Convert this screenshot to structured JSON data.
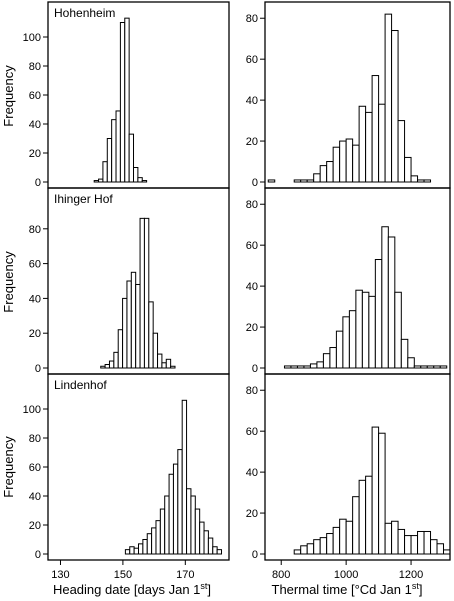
{
  "figure": {
    "ylabel": "Frequency",
    "xlabel_left_text": "Heading date [days Jan 1",
    "xlabel_left_sup": "st",
    "xlabel_left_close": "]",
    "xlabel_right_text": "Thermal time [°Cd Jan 1",
    "xlabel_right_sup": "st",
    "xlabel_right_close": "]",
    "bar_fill": "#ffffff",
    "bar_stroke": "#000000"
  },
  "chart_data": [
    {
      "type": "bar",
      "panel": "Hohenheim heading date",
      "title": "Hohenheim",
      "xlabel": "Heading date [days Jan 1st]",
      "ylabel": "Frequency",
      "xlim": [
        126,
        184
      ],
      "ylim": [
        0,
        120
      ],
      "xticks": [
        130,
        150,
        170
      ],
      "yticks": [
        0,
        20,
        40,
        60,
        80,
        100
      ],
      "show_x_tick_labels": false,
      "bin_width": 1.4,
      "bins": [
        {
          "x": 140.8,
          "y": 1
        },
        {
          "x": 142.2,
          "y": 2
        },
        {
          "x": 143.6,
          "y": 14
        },
        {
          "x": 145.0,
          "y": 30
        },
        {
          "x": 146.4,
          "y": 43
        },
        {
          "x": 147.8,
          "y": 49
        },
        {
          "x": 149.2,
          "y": 110
        },
        {
          "x": 150.6,
          "y": 113
        },
        {
          "x": 152.0,
          "y": 33
        },
        {
          "x": 153.4,
          "y": 10
        },
        {
          "x": 154.8,
          "y": 3
        },
        {
          "x": 156.2,
          "y": 1
        }
      ]
    },
    {
      "type": "bar",
      "panel": "Hohenheim thermal time",
      "title": "",
      "xlabel": "Thermal time [°Cd Jan 1st]",
      "ylabel": "",
      "xlim": [
        750,
        1320
      ],
      "ylim": [
        0,
        85
      ],
      "xticks": [
        800,
        1000,
        1200
      ],
      "yticks": [
        0,
        20,
        40,
        60,
        80
      ],
      "show_x_tick_labels": false,
      "bin_width": 20,
      "bins": [
        {
          "x": 760,
          "y": 1
        },
        {
          "x": 780,
          "y": 0
        },
        {
          "x": 800,
          "y": 0
        },
        {
          "x": 820,
          "y": 0
        },
        {
          "x": 840,
          "y": 1
        },
        {
          "x": 860,
          "y": 1
        },
        {
          "x": 880,
          "y": 1
        },
        {
          "x": 900,
          "y": 4
        },
        {
          "x": 920,
          "y": 8
        },
        {
          "x": 940,
          "y": 10
        },
        {
          "x": 960,
          "y": 17
        },
        {
          "x": 980,
          "y": 20
        },
        {
          "x": 1000,
          "y": 21
        },
        {
          "x": 1020,
          "y": 18
        },
        {
          "x": 1040,
          "y": 37
        },
        {
          "x": 1060,
          "y": 34
        },
        {
          "x": 1080,
          "y": 52
        },
        {
          "x": 1100,
          "y": 38
        },
        {
          "x": 1120,
          "y": 82
        },
        {
          "x": 1140,
          "y": 74
        },
        {
          "x": 1160,
          "y": 30
        },
        {
          "x": 1180,
          "y": 12
        },
        {
          "x": 1200,
          "y": 3
        },
        {
          "x": 1220,
          "y": 1
        },
        {
          "x": 1240,
          "y": 1
        }
      ]
    },
    {
      "type": "bar",
      "panel": "Ihinger Hof heading date",
      "title": "Ihinger Hof",
      "xlabel": "Heading date [days Jan 1st]",
      "ylabel": "Frequency",
      "xlim": [
        126,
        184
      ],
      "ylim": [
        0,
        100
      ],
      "xticks": [
        130,
        150,
        170
      ],
      "yticks": [
        0,
        20,
        40,
        60,
        80
      ],
      "show_x_tick_labels": false,
      "bin_width": 1.4,
      "bins": [
        {
          "x": 142.9,
          "y": 1
        },
        {
          "x": 144.3,
          "y": 2
        },
        {
          "x": 145.7,
          "y": 4
        },
        {
          "x": 147.1,
          "y": 9
        },
        {
          "x": 148.5,
          "y": 22
        },
        {
          "x": 149.9,
          "y": 40
        },
        {
          "x": 151.3,
          "y": 50
        },
        {
          "x": 152.7,
          "y": 55
        },
        {
          "x": 154.1,
          "y": 48
        },
        {
          "x": 155.5,
          "y": 86
        },
        {
          "x": 156.9,
          "y": 86
        },
        {
          "x": 158.3,
          "y": 38
        },
        {
          "x": 159.7,
          "y": 20
        },
        {
          "x": 161.1,
          "y": 8
        },
        {
          "x": 162.5,
          "y": 3
        },
        {
          "x": 163.9,
          "y": 5
        },
        {
          "x": 165.3,
          "y": 1
        }
      ]
    },
    {
      "type": "bar",
      "panel": "Ihinger Hof thermal time",
      "title": "",
      "xlabel": "Thermal time [°Cd Jan 1st]",
      "ylabel": "",
      "xlim": [
        750,
        1320
      ],
      "ylim": [
        0,
        85
      ],
      "xticks": [
        800,
        1000,
        1200
      ],
      "yticks": [
        0,
        20,
        40,
        60,
        80
      ],
      "show_x_tick_labels": false,
      "bin_width": 20,
      "bins": [
        {
          "x": 810,
          "y": 1
        },
        {
          "x": 830,
          "y": 1
        },
        {
          "x": 850,
          "y": 1
        },
        {
          "x": 870,
          "y": 1
        },
        {
          "x": 890,
          "y": 2
        },
        {
          "x": 910,
          "y": 3
        },
        {
          "x": 930,
          "y": 7
        },
        {
          "x": 950,
          "y": 10
        },
        {
          "x": 970,
          "y": 18
        },
        {
          "x": 990,
          "y": 25
        },
        {
          "x": 1010,
          "y": 28
        },
        {
          "x": 1030,
          "y": 38
        },
        {
          "x": 1050,
          "y": 37
        },
        {
          "x": 1070,
          "y": 35
        },
        {
          "x": 1090,
          "y": 53
        },
        {
          "x": 1110,
          "y": 69
        },
        {
          "x": 1130,
          "y": 64
        },
        {
          "x": 1150,
          "y": 37
        },
        {
          "x": 1170,
          "y": 14
        },
        {
          "x": 1190,
          "y": 5
        },
        {
          "x": 1210,
          "y": 1
        },
        {
          "x": 1230,
          "y": 1
        },
        {
          "x": 1250,
          "y": 1
        },
        {
          "x": 1270,
          "y": 1
        },
        {
          "x": 1290,
          "y": 1
        }
      ]
    },
    {
      "type": "bar",
      "panel": "Lindenhof heading date",
      "title": "Lindenhof",
      "xlabel": "Heading date [days Jan 1st]",
      "ylabel": "Frequency",
      "xlim": [
        126,
        184
      ],
      "ylim": [
        0,
        120
      ],
      "xticks": [
        130,
        150,
        170
      ],
      "yticks": [
        0,
        20,
        40,
        60,
        80,
        100
      ],
      "show_x_tick_labels": true,
      "bin_width": 1.4,
      "bins": [
        {
          "x": 150.8,
          "y": 3
        },
        {
          "x": 152.2,
          "y": 5
        },
        {
          "x": 153.6,
          "y": 4
        },
        {
          "x": 155.0,
          "y": 7
        },
        {
          "x": 156.4,
          "y": 10
        },
        {
          "x": 157.8,
          "y": 14
        },
        {
          "x": 159.2,
          "y": 18
        },
        {
          "x": 160.6,
          "y": 23
        },
        {
          "x": 162.0,
          "y": 31
        },
        {
          "x": 163.4,
          "y": 40
        },
        {
          "x": 164.8,
          "y": 55
        },
        {
          "x": 166.2,
          "y": 62
        },
        {
          "x": 167.6,
          "y": 72
        },
        {
          "x": 169.0,
          "y": 106
        },
        {
          "x": 170.4,
          "y": 45
        },
        {
          "x": 171.8,
          "y": 40
        },
        {
          "x": 173.2,
          "y": 31
        },
        {
          "x": 174.6,
          "y": 22
        },
        {
          "x": 176.0,
          "y": 16
        },
        {
          "x": 177.4,
          "y": 11
        },
        {
          "x": 178.8,
          "y": 5
        },
        {
          "x": 180.2,
          "y": 3
        }
      ]
    },
    {
      "type": "bar",
      "panel": "Lindenhof thermal time",
      "title": "",
      "xlabel": "Thermal time [°Cd Jan 1st]",
      "ylabel": "",
      "xlim": [
        750,
        1320
      ],
      "ylim": [
        0,
        85
      ],
      "xticks": [
        800,
        1000,
        1200
      ],
      "yticks": [
        0,
        20,
        40,
        60,
        80
      ],
      "show_x_tick_labels": true,
      "bin_width": 20,
      "bins": [
        {
          "x": 840,
          "y": 2
        },
        {
          "x": 860,
          "y": 4
        },
        {
          "x": 880,
          "y": 5
        },
        {
          "x": 900,
          "y": 7
        },
        {
          "x": 920,
          "y": 8
        },
        {
          "x": 940,
          "y": 10
        },
        {
          "x": 960,
          "y": 13
        },
        {
          "x": 980,
          "y": 17
        },
        {
          "x": 1000,
          "y": 16
        },
        {
          "x": 1020,
          "y": 28
        },
        {
          "x": 1040,
          "y": 36
        },
        {
          "x": 1060,
          "y": 38
        },
        {
          "x": 1080,
          "y": 62
        },
        {
          "x": 1100,
          "y": 59
        },
        {
          "x": 1120,
          "y": 15
        },
        {
          "x": 1140,
          "y": 16
        },
        {
          "x": 1160,
          "y": 12
        },
        {
          "x": 1180,
          "y": 9
        },
        {
          "x": 1200,
          "y": 9
        },
        {
          "x": 1220,
          "y": 11
        },
        {
          "x": 1240,
          "y": 11
        },
        {
          "x": 1260,
          "y": 7
        },
        {
          "x": 1280,
          "y": 5
        },
        {
          "x": 1300,
          "y": 2
        }
      ]
    }
  ]
}
